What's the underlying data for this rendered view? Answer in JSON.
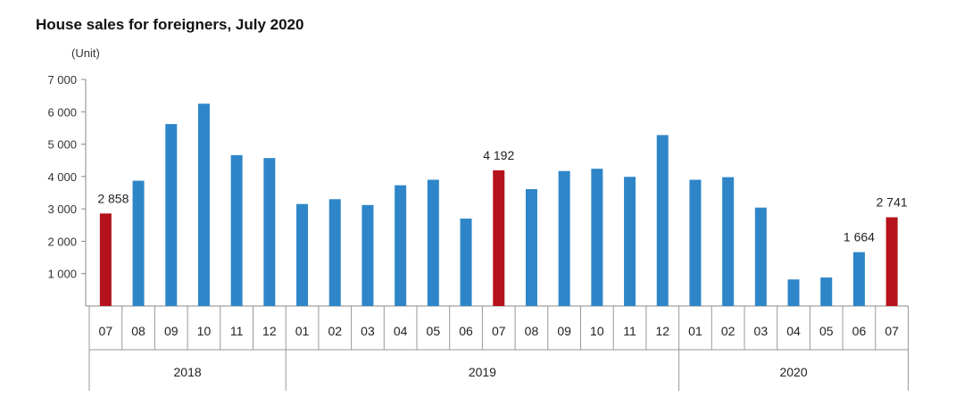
{
  "chart_data": {
    "type": "bar",
    "title": "House sales for foreigners, July 2020",
    "unit_label": "(Unit)",
    "ylim": [
      0,
      7000
    ],
    "yticks": [
      1000,
      2000,
      3000,
      4000,
      5000,
      6000,
      7000
    ],
    "ytick_labels": [
      "1 000",
      "2 000",
      "3 000",
      "4 000",
      "5 000",
      "6 000",
      "7 000"
    ],
    "grid": false,
    "categories": [
      "07",
      "08",
      "09",
      "10",
      "11",
      "12",
      "01",
      "02",
      "03",
      "04",
      "05",
      "06",
      "07",
      "08",
      "09",
      "10",
      "11",
      "12",
      "01",
      "02",
      "03",
      "04",
      "05",
      "06",
      "07"
    ],
    "years": [
      {
        "label": "2018",
        "start": 0,
        "count": 6
      },
      {
        "label": "2019",
        "start": 6,
        "count": 12
      },
      {
        "label": "2020",
        "start": 18,
        "count": 7
      }
    ],
    "values": [
      2858,
      3870,
      5620,
      6250,
      4660,
      4570,
      3150,
      3300,
      3120,
      3730,
      3900,
      2700,
      4192,
      3610,
      4170,
      4240,
      3990,
      5280,
      3900,
      3980,
      3040,
      820,
      880,
      1664,
      2741
    ],
    "highlight_indices": [
      0,
      12,
      24
    ],
    "data_labels": [
      {
        "index": 0,
        "text": "2 858"
      },
      {
        "index": 12,
        "text": "4 192"
      },
      {
        "index": 23,
        "text": "1 664"
      },
      {
        "index": 24,
        "text": "2 741"
      }
    ],
    "colors": {
      "bar": "#2e86c8",
      "highlight": "#b5121b",
      "axis": "#888888"
    }
  }
}
